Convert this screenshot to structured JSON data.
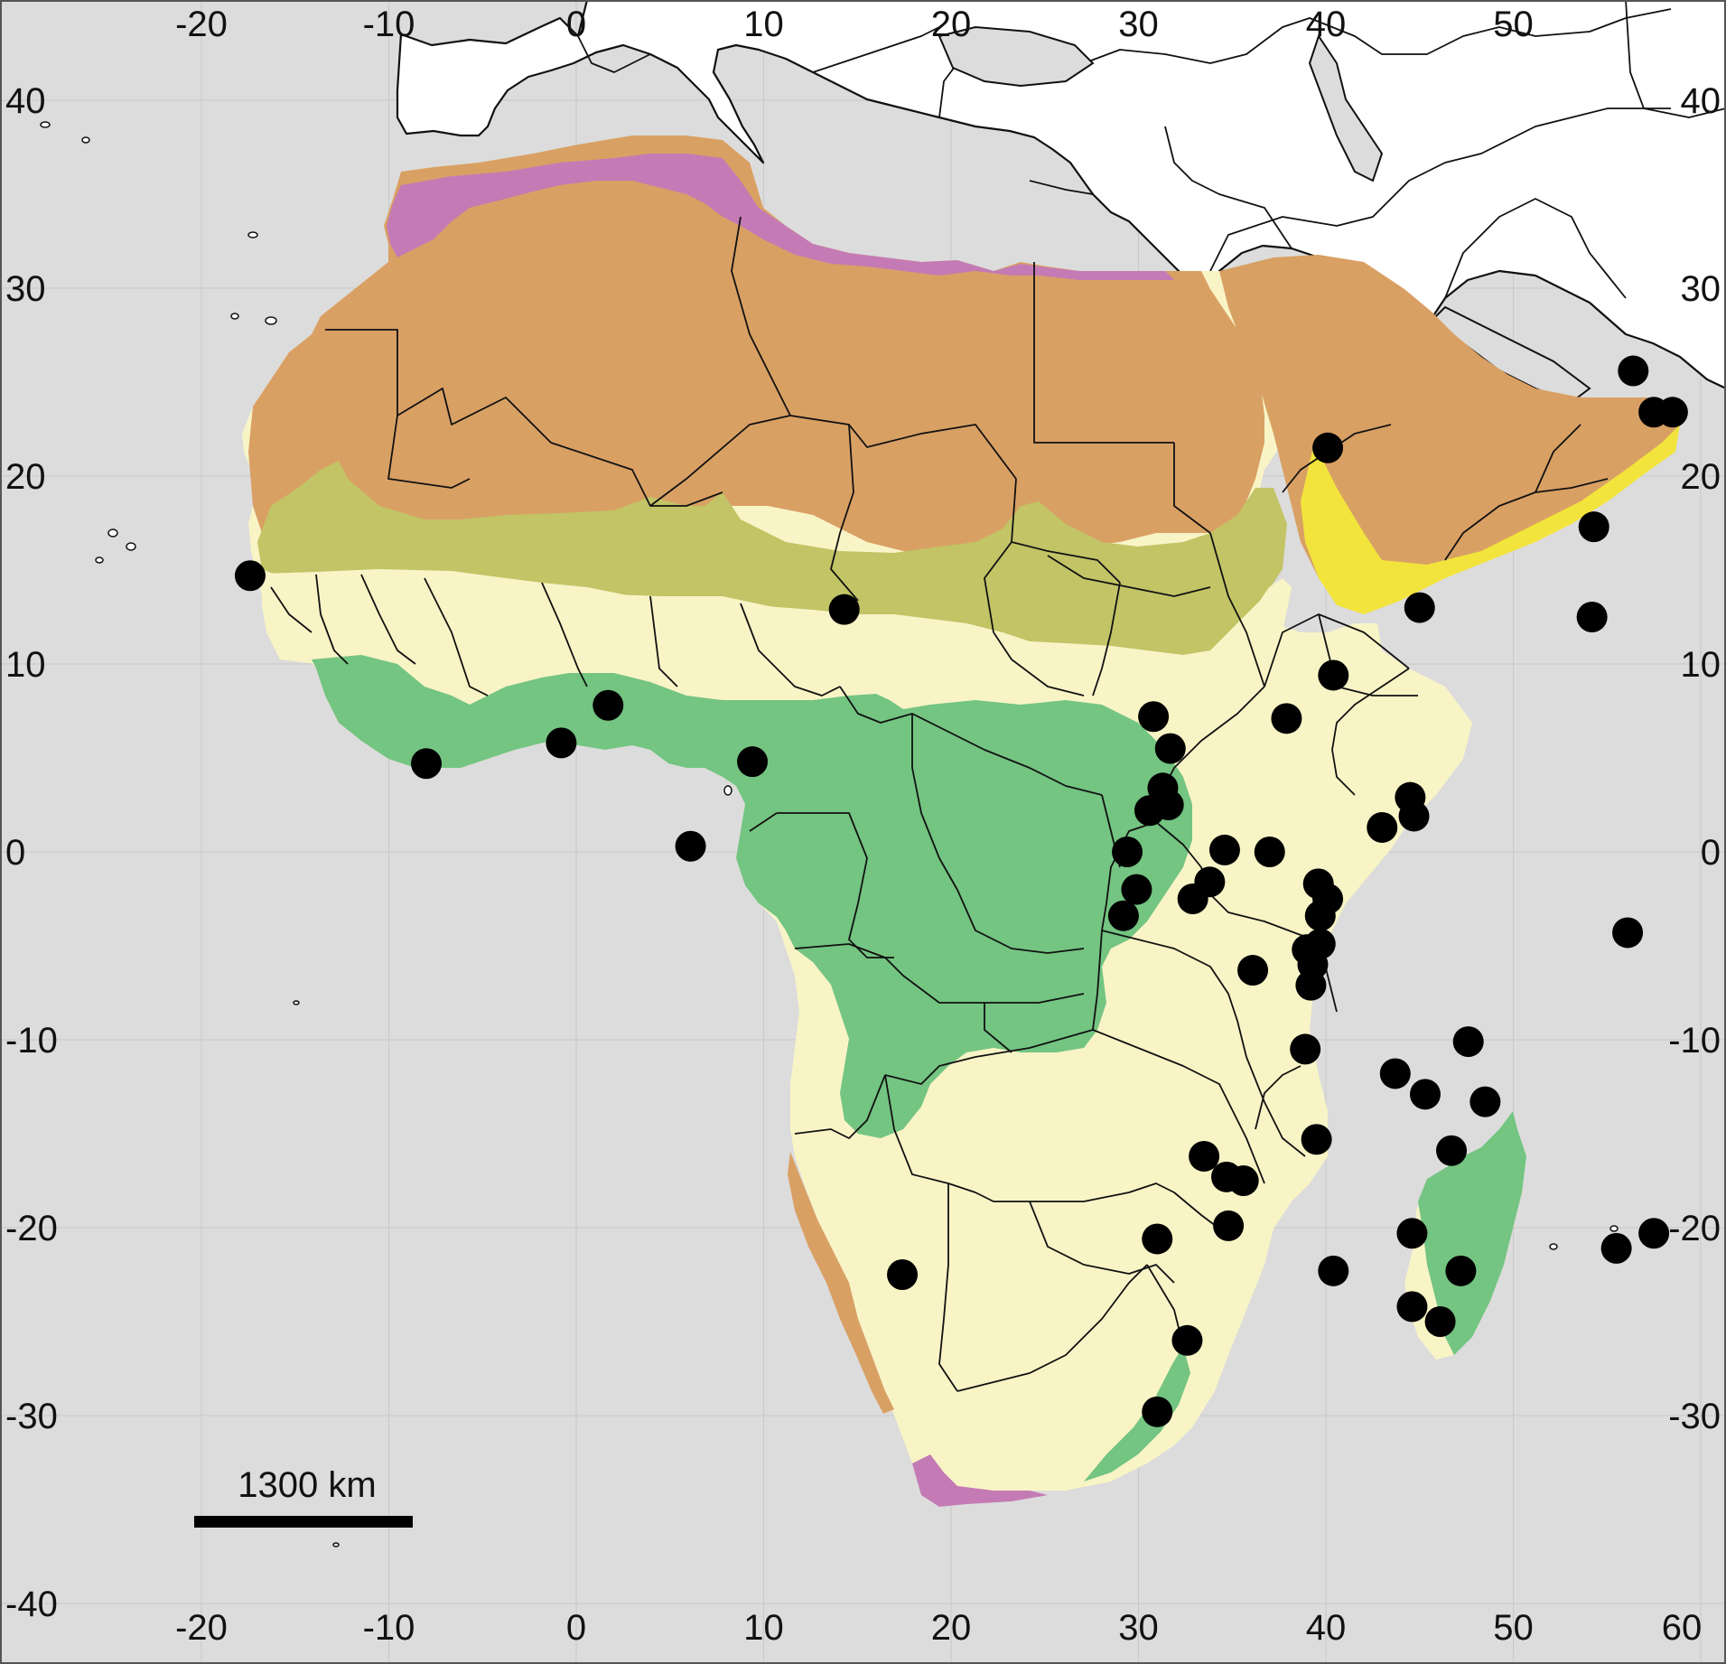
{
  "map": {
    "ocean_color": "#dcdcdc",
    "land_color": "#ffffff",
    "x_ticks": [
      -20,
      -10,
      0,
      10,
      20,
      30,
      40,
      50,
      60
    ],
    "y_ticks": [
      40,
      30,
      20,
      10,
      0,
      -10,
      -20,
      -30,
      -40
    ],
    "x_tick_labels": [
      "-20",
      "-10",
      "0",
      "10",
      "20",
      "30",
      "40",
      "50",
      "60"
    ],
    "y_tick_labels": [
      "40",
      "30",
      "20",
      "10",
      "0",
      "-10",
      "-20",
      "-30",
      "-40"
    ],
    "scale_bar_label": "1300 km",
    "zone_colors": {
      "mediterranean": "#c47bb5",
      "desert": "#d9a064",
      "sahel": "#c2c466",
      "savanna": "#f8f4c6",
      "forest": "#74c482",
      "coastal_arabia": "#f2e43c"
    },
    "marker_color": "#000000",
    "sites": [
      {
        "lon": -17.4,
        "lat": 14.7
      },
      {
        "lon": -8.0,
        "lat": 4.7
      },
      {
        "lon": -0.8,
        "lat": 5.8
      },
      {
        "lon": 1.7,
        "lat": 7.8
      },
      {
        "lon": 6.1,
        "lat": 0.3
      },
      {
        "lon": 9.4,
        "lat": 4.8
      },
      {
        "lon": 14.3,
        "lat": 12.9
      },
      {
        "lon": 17.4,
        "lat": -22.5
      },
      {
        "lon": 30.8,
        "lat": 7.2
      },
      {
        "lon": 31.7,
        "lat": 5.5
      },
      {
        "lon": 31.3,
        "lat": 3.4
      },
      {
        "lon": 30.6,
        "lat": 2.2
      },
      {
        "lon": 31.6,
        "lat": 2.5
      },
      {
        "lon": 29.4,
        "lat": 0.0
      },
      {
        "lon": 29.9,
        "lat": -2.0
      },
      {
        "lon": 29.2,
        "lat": -3.4
      },
      {
        "lon": 34.6,
        "lat": 0.1
      },
      {
        "lon": 33.8,
        "lat": -1.6
      },
      {
        "lon": 32.9,
        "lat": -2.5
      },
      {
        "lon": 37.0,
        "lat": 0.0
      },
      {
        "lon": 36.1,
        "lat": -6.3
      },
      {
        "lon": 37.9,
        "lat": 7.1
      },
      {
        "lon": 40.4,
        "lat": 9.4
      },
      {
        "lon": 39.0,
        "lat": -5.2
      },
      {
        "lon": 39.3,
        "lat": -6.0
      },
      {
        "lon": 39.2,
        "lat": -7.1
      },
      {
        "lon": 39.6,
        "lat": -1.7
      },
      {
        "lon": 40.1,
        "lat": -2.5
      },
      {
        "lon": 39.7,
        "lat": -3.4
      },
      {
        "lon": 39.7,
        "lat": -4.9
      },
      {
        "lon": 38.9,
        "lat": -10.5
      },
      {
        "lon": 39.5,
        "lat": -15.3
      },
      {
        "lon": 43.0,
        "lat": 1.3
      },
      {
        "lon": 44.5,
        "lat": 2.9
      },
      {
        "lon": 44.7,
        "lat": 1.9
      },
      {
        "lon": 33.5,
        "lat": -16.2
      },
      {
        "lon": 34.7,
        "lat": -17.3
      },
      {
        "lon": 35.6,
        "lat": -17.5
      },
      {
        "lon": 34.8,
        "lat": -19.9
      },
      {
        "lon": 31.0,
        "lat": -20.6
      },
      {
        "lon": 32.6,
        "lat": -26.0
      },
      {
        "lon": 31.0,
        "lat": -29.8
      },
      {
        "lon": 40.4,
        "lat": -22.3
      },
      {
        "lon": 43.7,
        "lat": -11.8
      },
      {
        "lon": 45.3,
        "lat": -12.9
      },
      {
        "lon": 47.6,
        "lat": -10.1
      },
      {
        "lon": 48.5,
        "lat": -13.3
      },
      {
        "lon": 46.7,
        "lat": -15.9
      },
      {
        "lon": 44.6,
        "lat": -20.3
      },
      {
        "lon": 44.6,
        "lat": -24.2
      },
      {
        "lon": 46.1,
        "lat": -25.0
      },
      {
        "lon": 47.2,
        "lat": -22.3
      },
      {
        "lon": 56.1,
        "lat": -4.3
      },
      {
        "lon": 55.5,
        "lat": -21.1
      },
      {
        "lon": 57.5,
        "lat": -20.3
      },
      {
        "lon": 40.1,
        "lat": 21.5
      },
      {
        "lon": 45.0,
        "lat": 13.0
      },
      {
        "lon": 54.3,
        "lat": 17.3
      },
      {
        "lon": 54.2,
        "lat": 12.5
      },
      {
        "lon": 56.4,
        "lat": 25.6
      },
      {
        "lon": 57.5,
        "lat": 23.4
      },
      {
        "lon": 58.5,
        "lat": 23.4
      }
    ]
  }
}
